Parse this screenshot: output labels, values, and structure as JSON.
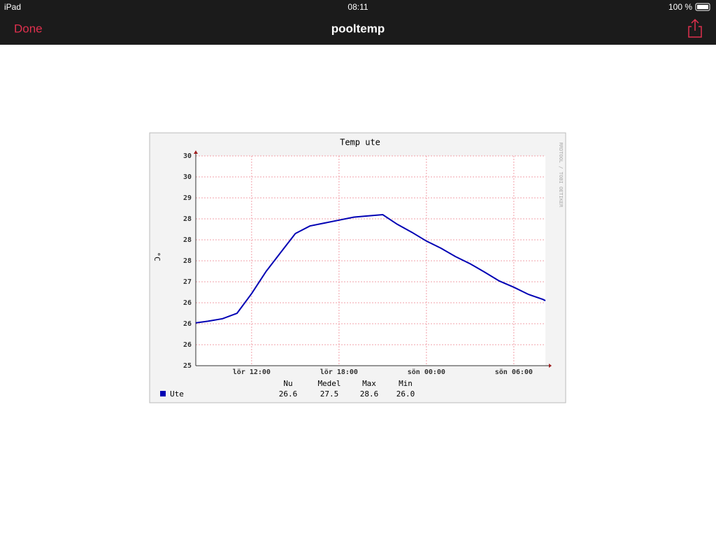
{
  "status_bar": {
    "device": "iPad",
    "time": "08:11",
    "battery": "100 %"
  },
  "nav_bar": {
    "done": "Done",
    "title": "pooltemp"
  },
  "chart_data": {
    "type": "line",
    "title": "Temp ute",
    "y_label": "°C",
    "watermark": "RRDTOOL / TOBI OETIKER",
    "x": [
      "lör 08:10",
      "lör 09:00",
      "lör 10:00",
      "lör 11:00",
      "lör 12:00",
      "lör 13:00",
      "lör 14:00",
      "lör 15:00",
      "lör 16:00",
      "lör 17:00",
      "lör 18:00",
      "lör 19:00",
      "lör 20:00",
      "lör 21:00",
      "lör 22:00",
      "lör 23:00",
      "sön 00:00",
      "sön 01:00",
      "sön 02:00",
      "sön 03:00",
      "sön 04:00",
      "sön 05:00",
      "sön 06:00",
      "sön 07:00",
      "sön 08:00",
      "sön 08:10"
    ],
    "series": [
      {
        "name": "Ute",
        "color": "#0000b4",
        "values": [
          26.02,
          26.06,
          26.12,
          26.25,
          26.72,
          27.25,
          27.7,
          28.15,
          28.33,
          28.4,
          28.47,
          28.54,
          28.57,
          28.6,
          28.37,
          28.18,
          27.97,
          27.8,
          27.6,
          27.43,
          27.23,
          27.02,
          26.87,
          26.7,
          26.58,
          26.55
        ]
      }
    ],
    "xlim": [
      "lör 08:10",
      "sön 08:10"
    ],
    "xticks": [
      "lör 12:00",
      "lör 18:00",
      "sön 00:00",
      "sön 06:00"
    ],
    "ylim": [
      25,
      30
    ],
    "yticks": [
      25,
      {
        "value": 25.5,
        "label": "26"
      },
      26,
      {
        "value": 26.5,
        "label": "26"
      },
      27,
      {
        "value": 27.5,
        "label": "28"
      },
      28,
      {
        "value": 28.5,
        "label": "28"
      },
      29,
      {
        "value": 29.5,
        "label": "30"
      },
      30
    ],
    "grid": true,
    "stats": {
      "headers": [
        "Nu",
        "Medel",
        "Max",
        "Min"
      ],
      "values": [
        "26.6",
        "27.5",
        "28.6",
        "26.0"
      ]
    }
  }
}
